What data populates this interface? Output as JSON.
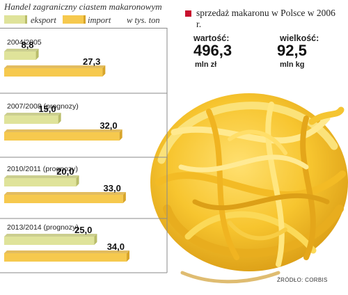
{
  "chart_data": {
    "type": "bar",
    "orientation": "horizontal",
    "title": "Handel zagraniczny ciastem makaronowym",
    "unit": "w tys. ton",
    "categories": [
      "2004/2005",
      "2007/2008 (prognozy)",
      "2010/2011 (prognozy)",
      "2013/2014 (prognozy)"
    ],
    "series": [
      {
        "name": "eksport",
        "values": [
          8.8,
          15.0,
          20.0,
          25.0
        ],
        "labels": [
          "8,8",
          "15,0",
          "20,0",
          "25,0"
        ]
      },
      {
        "name": "import",
        "values": [
          27.3,
          32.0,
          33.0,
          34.0
        ],
        "labels": [
          "27,3",
          "32,0",
          "33,0",
          "34,0"
        ]
      }
    ],
    "xlim": [
      0,
      35
    ],
    "grid": false,
    "legend": "top-left"
  },
  "colors": {
    "eksport": "#dfe39a",
    "import": "#f6c94e",
    "eksport_shade": "#b9bd6a",
    "import_shade": "#d8a52a",
    "accent": "#c8102e"
  },
  "info": {
    "title": "sprzedaż makaronu w Polsce w 2006 r.",
    "value_label": "wartość:",
    "value": "496,3",
    "value_unit": "mln zł",
    "volume_label": "wielkość:",
    "volume": "92,5",
    "volume_unit": "mln kg"
  },
  "source": "ŹRÓDŁO: CORBIS",
  "image": {
    "subject": "pasta-nest"
  }
}
